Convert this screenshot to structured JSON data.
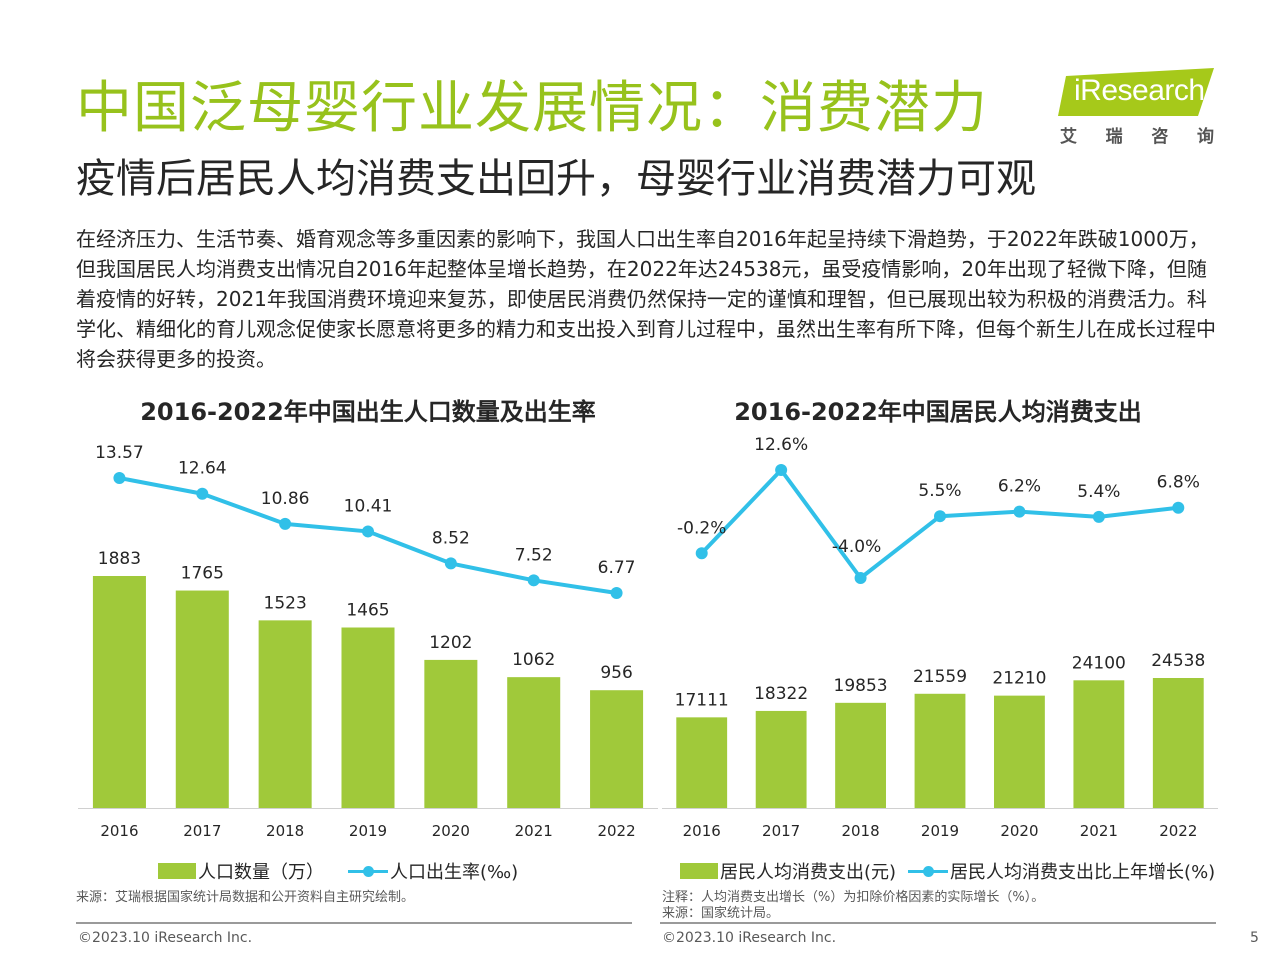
{
  "title": "中国泛母婴行业发展情况：消费潜力",
  "subtitle": "疫情后居民人均消费支出回升，母婴行业消费潜力可观",
  "paragraph": "在经济压力、生活节奏、婚育观念等多重因素的影响下，我国人口出生率自2016年起呈持续下滑趋势，于2022年跌破1000万，但我国居民人均消费支出情况自2016年起整体呈增长趋势，在2022年达24538元，虽受疫情影响，20年出现了轻微下降，但随着疫情的好转，2021年我国消费环境迎来复苏，即使居民消费仍然保持一定的谨慎和理智，但已展现出较为积极的消费活力。科学化、精细化的育儿观念促使家长愿意将更多的精力和支出投入到育儿过程中，虽然出生率有所下降，但每个新生儿在成长过程中将会获得更多的投资。",
  "logo": {
    "text": "iResearch",
    "cn": [
      "艾",
      "瑞",
      "咨",
      "询"
    ]
  },
  "colors": {
    "title": "#97c21c",
    "bar": "#a0c93a",
    "line": "#31c0e8"
  },
  "chart_data": [
    {
      "type": "bar+line",
      "title": "2016-2022年中国出生人口数量及出生率",
      "categories": [
        "2016",
        "2017",
        "2018",
        "2019",
        "2020",
        "2021",
        "2022"
      ],
      "series": [
        {
          "name": "人口数量（万）",
          "type": "bar",
          "values": [
            1883,
            1765,
            1523,
            1465,
            1202,
            1062,
            956
          ],
          "labels": [
            "1883",
            "1765",
            "1523",
            "1465",
            "1202",
            "1062",
            "956"
          ]
        },
        {
          "name": "人口出生率(‰)",
          "type": "line",
          "values": [
            13.57,
            12.64,
            10.86,
            10.41,
            8.52,
            7.52,
            6.77
          ],
          "labels": [
            "13.57",
            "12.64",
            "10.86",
            "10.41",
            "8.52",
            "7.52",
            "6.77"
          ]
        }
      ],
      "legend": "bottom"
    },
    {
      "type": "bar+line",
      "title": "2016-2022年中国居民人均消费支出",
      "categories": [
        "2016",
        "2017",
        "2018",
        "2019",
        "2020",
        "2021",
        "2022"
      ],
      "series": [
        {
          "name": "居民人均消费支出(元)",
          "type": "bar",
          "values": [
            17111,
            18322,
            19853,
            21559,
            21210,
            24100,
            24538
          ],
          "labels": [
            "17111",
            "18322",
            "19853",
            "21559",
            "21210",
            "24100",
            "24538"
          ]
        },
        {
          "name": "居民人均消费支出比上年增长(%)",
          "type": "line",
          "values": [
            -0.2,
            12.6,
            -4.0,
            5.5,
            6.2,
            5.4,
            6.8
          ],
          "labels": [
            "-0.2%",
            "12.6%",
            "-4.0%",
            "5.5%",
            "6.2%",
            "5.4%",
            "6.8%"
          ]
        }
      ],
      "legend": "bottom"
    }
  ],
  "source_left": "来源：艾瑞根据国家统计局数据和公开资料自主研究绘制。",
  "note_right_1": "注释：人均消费支出增长（%）为扣除价格因素的实际增长（%）。",
  "note_right_2": "来源：国家统计局。",
  "footer_left": "©2023.10 iResearch Inc.",
  "footer_right": "©2023.10 iResearch Inc.",
  "page_number": "5"
}
